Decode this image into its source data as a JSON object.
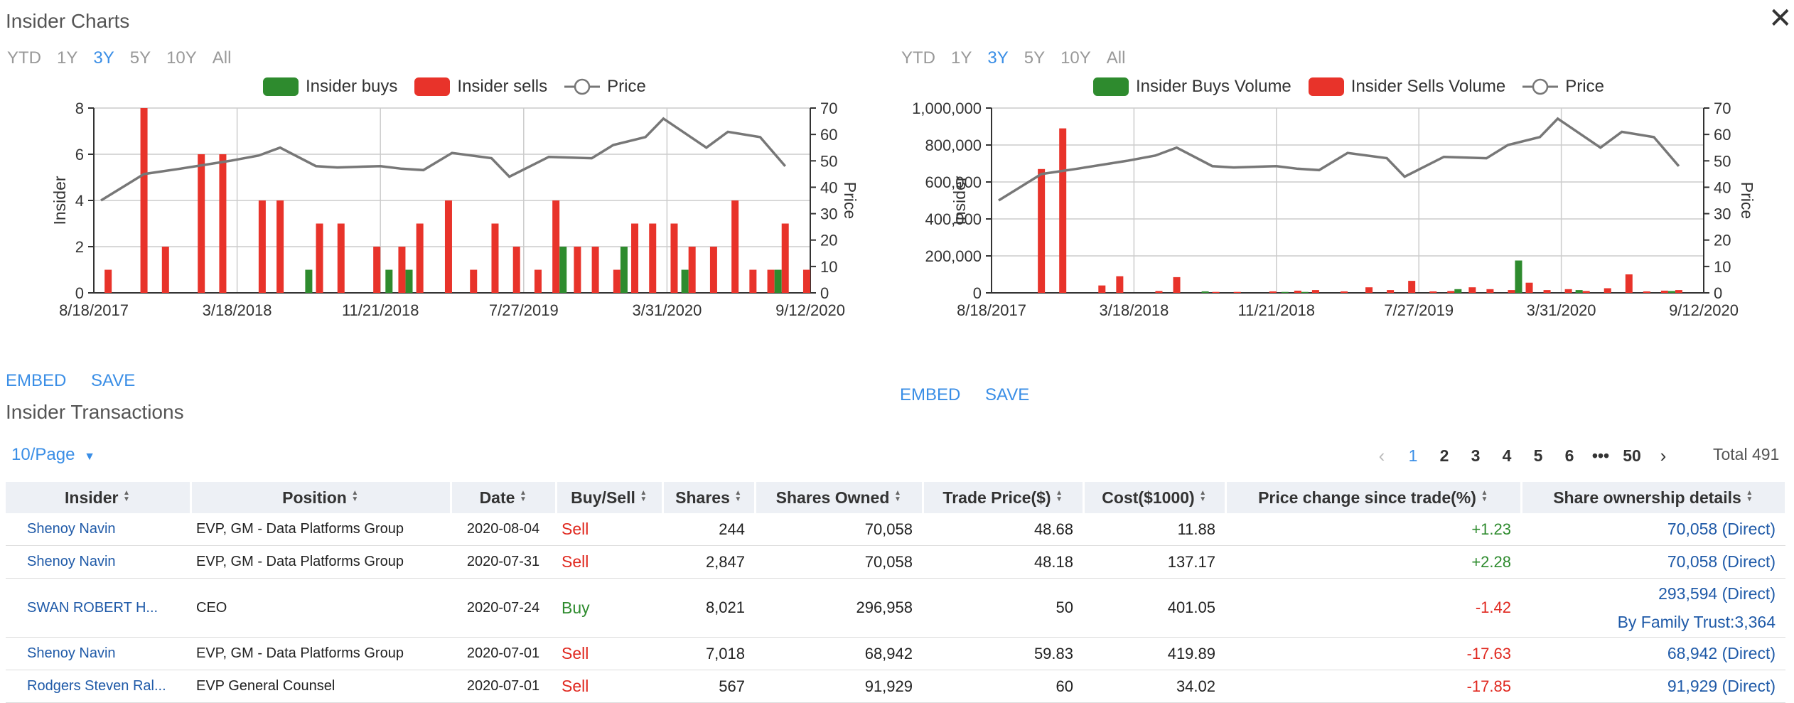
{
  "charts_title": "Insider Charts",
  "close_glyph": "✕",
  "range_options": [
    "YTD",
    "1Y",
    "3Y",
    "5Y",
    "10Y",
    "All"
  ],
  "active_range": "3Y",
  "left_chart": {
    "legend": {
      "buys": "Insider buys",
      "sells": "Insider sells",
      "price": "Price"
    },
    "ylabel_left": "Insider",
    "ylabel_right": "Price",
    "yticks_left": [
      "0",
      "2",
      "4",
      "6",
      "8"
    ],
    "yticks_right": [
      "0",
      "10",
      "20",
      "30",
      "40",
      "50",
      "60",
      "70"
    ],
    "xticks": [
      "8/18/2017",
      "3/18/2018",
      "11/21/2018",
      "7/27/2019",
      "3/31/2020",
      "9/12/2020"
    ],
    "embed": "EMBED",
    "save": "SAVE"
  },
  "right_chart": {
    "legend": {
      "buys": "Insider Buys Volume",
      "sells": "Insider Sells Volume",
      "price": "Price"
    },
    "ylabel_left": "Insider",
    "ylabel_right": "Price",
    "yticks_left": [
      "0",
      "200,000",
      "400,000",
      "600,000",
      "800,000",
      "1,000,000"
    ],
    "yticks_right": [
      "0",
      "10",
      "20",
      "30",
      "40",
      "50",
      "60",
      "70"
    ],
    "xticks": [
      "8/18/2017",
      "3/18/2018",
      "11/21/2018",
      "7/27/2019",
      "3/31/2020",
      "9/12/2020"
    ],
    "embed": "EMBED",
    "save": "SAVE"
  },
  "chart_data": [
    {
      "type": "bar",
      "title": "",
      "ylabel": "Insider",
      "y2label": "Price",
      "ylim": [
        0,
        8
      ],
      "y2lim": [
        0,
        70
      ],
      "x_range": [
        "8/18/2017",
        "9/12/2020"
      ],
      "series": [
        {
          "name": "Insider sells",
          "color": "#e8332a",
          "points": [
            [
              0.02,
              1
            ],
            [
              0.07,
              8
            ],
            [
              0.1,
              2
            ],
            [
              0.15,
              6
            ],
            [
              0.18,
              6
            ],
            [
              0.235,
              4
            ],
            [
              0.26,
              4
            ],
            [
              0.315,
              3
            ],
            [
              0.345,
              3
            ],
            [
              0.395,
              2
            ],
            [
              0.43,
              2
            ],
            [
              0.455,
              3
            ],
            [
              0.495,
              4
            ],
            [
              0.53,
              1
            ],
            [
              0.56,
              3
            ],
            [
              0.59,
              2
            ],
            [
              0.62,
              1
            ],
            [
              0.645,
              4
            ],
            [
              0.675,
              2
            ],
            [
              0.7,
              2
            ],
            [
              0.73,
              1
            ],
            [
              0.755,
              3
            ],
            [
              0.78,
              3
            ],
            [
              0.81,
              3
            ],
            [
              0.835,
              2
            ],
            [
              0.865,
              2
            ],
            [
              0.895,
              4
            ],
            [
              0.92,
              1
            ],
            [
              0.945,
              1
            ],
            [
              0.965,
              3
            ],
            [
              0.995,
              1
            ]
          ]
        },
        {
          "name": "Insider buys",
          "color": "#2e8b2e",
          "points": [
            [
              0.3,
              1
            ],
            [
              0.412,
              1
            ],
            [
              0.44,
              1
            ],
            [
              0.655,
              2
            ],
            [
              0.74,
              2
            ],
            [
              0.825,
              1
            ],
            [
              0.955,
              1
            ]
          ]
        }
      ],
      "price": {
        "name": "Price",
        "color": "#777",
        "points": [
          [
            0.01,
            35
          ],
          [
            0.07,
            45
          ],
          [
            0.12,
            47
          ],
          [
            0.19,
            50
          ],
          [
            0.23,
            52
          ],
          [
            0.26,
            55
          ],
          [
            0.31,
            48
          ],
          [
            0.34,
            47.5
          ],
          [
            0.4,
            48
          ],
          [
            0.43,
            47
          ],
          [
            0.46,
            46.5
          ],
          [
            0.5,
            53
          ],
          [
            0.555,
            51
          ],
          [
            0.58,
            44
          ],
          [
            0.635,
            51.5
          ],
          [
            0.695,
            51
          ],
          [
            0.725,
            56
          ],
          [
            0.77,
            59
          ],
          [
            0.795,
            66
          ],
          [
            0.855,
            55
          ],
          [
            0.885,
            61
          ],
          [
            0.93,
            59
          ],
          [
            0.965,
            48
          ]
        ]
      }
    },
    {
      "type": "bar",
      "title": "",
      "ylabel": "Insider",
      "y2label": "Price",
      "ylim": [
        0,
        1000000
      ],
      "y2lim": [
        0,
        70
      ],
      "x_range": [
        "8/18/2017",
        "9/12/2020"
      ],
      "series": [
        {
          "name": "Insider Sells Volume",
          "color": "#e8332a",
          "points": [
            [
              0.07,
              670000
            ],
            [
              0.1,
              890000
            ],
            [
              0.155,
              40000
            ],
            [
              0.18,
              90000
            ],
            [
              0.235,
              10000
            ],
            [
              0.26,
              85000
            ],
            [
              0.315,
              5000
            ],
            [
              0.345,
              5000
            ],
            [
              0.395,
              8000
            ],
            [
              0.43,
              12000
            ],
            [
              0.455,
              15000
            ],
            [
              0.495,
              8000
            ],
            [
              0.53,
              30000
            ],
            [
              0.56,
              15000
            ],
            [
              0.59,
              65000
            ],
            [
              0.62,
              8000
            ],
            [
              0.645,
              10000
            ],
            [
              0.675,
              30000
            ],
            [
              0.7,
              20000
            ],
            [
              0.73,
              15000
            ],
            [
              0.755,
              55000
            ],
            [
              0.78,
              15000
            ],
            [
              0.81,
              20000
            ],
            [
              0.835,
              10000
            ],
            [
              0.865,
              25000
            ],
            [
              0.895,
              100000
            ],
            [
              0.92,
              8000
            ],
            [
              0.945,
              12000
            ],
            [
              0.965,
              15000
            ]
          ]
        },
        {
          "name": "Insider Buys Volume",
          "color": "#2e8b2e",
          "points": [
            [
              0.3,
              8000
            ],
            [
              0.412,
              5000
            ],
            [
              0.44,
              5000
            ],
            [
              0.655,
              20000
            ],
            [
              0.74,
              175000
            ],
            [
              0.825,
              15000
            ],
            [
              0.955,
              10000
            ]
          ]
        }
      ],
      "price": {
        "name": "Price",
        "color": "#777",
        "points": [
          [
            0.01,
            35
          ],
          [
            0.07,
            45
          ],
          [
            0.12,
            47
          ],
          [
            0.19,
            50
          ],
          [
            0.23,
            52
          ],
          [
            0.26,
            55
          ],
          [
            0.31,
            48
          ],
          [
            0.34,
            47.5
          ],
          [
            0.4,
            48
          ],
          [
            0.43,
            47
          ],
          [
            0.46,
            46.5
          ],
          [
            0.5,
            53
          ],
          [
            0.555,
            51
          ],
          [
            0.58,
            44
          ],
          [
            0.635,
            51.5
          ],
          [
            0.695,
            51
          ],
          [
            0.725,
            56
          ],
          [
            0.77,
            59
          ],
          [
            0.795,
            66
          ],
          [
            0.855,
            55
          ],
          [
            0.885,
            61
          ],
          [
            0.93,
            59
          ],
          [
            0.965,
            48
          ]
        ]
      }
    }
  ],
  "transactions": {
    "title": "Insider Transactions",
    "page_size": "10/Page",
    "pages": [
      "1",
      "2",
      "3",
      "4",
      "5",
      "6",
      "•••",
      "50"
    ],
    "active_page": "1",
    "total": "Total 491",
    "columns": [
      "Insider",
      "Position",
      "Date",
      "Buy/Sell",
      "Shares",
      "Shares Owned",
      "Trade Price($)",
      "Cost($1000)",
      "Price change since trade(%)",
      "Share ownership details"
    ],
    "rows": [
      {
        "insider": "Shenoy Navin",
        "position": "EVP, GM - Data Platforms Group",
        "date": "2020-08-04",
        "type": "Sell",
        "shares": "244",
        "owned": "70,058",
        "price": "48.68",
        "cost": "11.88",
        "change": "+1.23",
        "details": [
          "70,058 (Direct)"
        ]
      },
      {
        "insider": "Shenoy Navin",
        "position": "EVP, GM - Data Platforms Group",
        "date": "2020-07-31",
        "type": "Sell",
        "shares": "2,847",
        "owned": "70,058",
        "price": "48.18",
        "cost": "137.17",
        "change": "+2.28",
        "details": [
          "70,058 (Direct)"
        ]
      },
      {
        "insider": "SWAN ROBERT H...",
        "position": "CEO",
        "date": "2020-07-24",
        "type": "Buy",
        "shares": "8,021",
        "owned": "296,958",
        "price": "50",
        "cost": "401.05",
        "change": "-1.42",
        "details": [
          "293,594 (Direct)",
          "By Family Trust:3,364"
        ]
      },
      {
        "insider": "Shenoy Navin",
        "position": "EVP, GM - Data Platforms Group",
        "date": "2020-07-01",
        "type": "Sell",
        "shares": "7,018",
        "owned": "68,942",
        "price": "59.83",
        "cost": "419.89",
        "change": "-17.63",
        "details": [
          "68,942 (Direct)"
        ]
      },
      {
        "insider": "Rodgers Steven Ral...",
        "position": "EVP General Counsel",
        "date": "2020-07-01",
        "type": "Sell",
        "shares": "567",
        "owned": "91,929",
        "price": "60",
        "cost": "34.02",
        "change": "-17.85",
        "details": [
          "91,929 (Direct)"
        ]
      }
    ]
  }
}
